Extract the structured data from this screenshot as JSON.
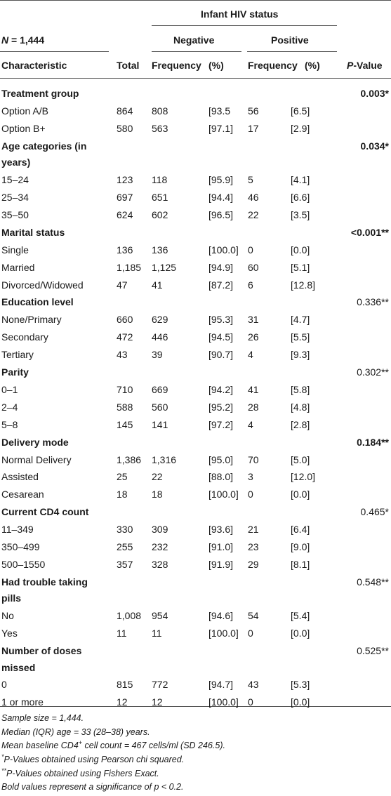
{
  "header": {
    "group_title": "Infant HIV status",
    "n_label": "N",
    "n_value": " = 1,444",
    "negative": "Negative",
    "positive": "Positive",
    "col_characteristic": "Characteristic",
    "col_total": "Total",
    "col_freq_neg": "Frequency",
    "col_pct_neg": "(%)",
    "col_freq_pos": "Frequency",
    "col_pct_pos": "(%)",
    "col_p": "P",
    "col_p_suffix": "-Value"
  },
  "rows": [
    {
      "type": "section",
      "label": "Treatment group",
      "p": "0.003*",
      "p_bold": true
    },
    {
      "type": "data",
      "label": "Option A/B",
      "total": "864",
      "neg_f": "808",
      "neg_p": "[93.5",
      "pos_f": "56",
      "pos_p": "[6.5]"
    },
    {
      "type": "data",
      "label": "Option B+",
      "total": "580",
      "neg_f": "563",
      "neg_p": "[97.1]",
      "pos_f": "17",
      "pos_p": "[2.9]"
    },
    {
      "type": "section2",
      "label": "Age categories (in",
      "label2": "years)",
      "p": "0.034*",
      "p_bold": true
    },
    {
      "type": "data",
      "label": "15–24",
      "total": "123",
      "neg_f": "118",
      "neg_p": "[95.9]",
      "pos_f": "5",
      "pos_p": "[4.1]"
    },
    {
      "type": "data",
      "label": "25–34",
      "total": "697",
      "neg_f": "651",
      "neg_p": "[94.4]",
      "pos_f": "46",
      "pos_p": "[6.6]"
    },
    {
      "type": "data",
      "label": "35–50",
      "total": "624",
      "neg_f": "602",
      "neg_p": "[96.5]",
      "pos_f": "22",
      "pos_p": "[3.5]"
    },
    {
      "type": "section",
      "label": "Marital status",
      "p": "<0.001**",
      "p_bold": true
    },
    {
      "type": "data",
      "label": "Single",
      "total": "136",
      "neg_f": "136",
      "neg_p": "[100.0]",
      "pos_f": "0",
      "pos_p": "[0.0]"
    },
    {
      "type": "data",
      "label": "Married",
      "total": "1,185",
      "neg_f": "1,125",
      "neg_p": "[94.9]",
      "pos_f": "60",
      "pos_p": "[5.1]"
    },
    {
      "type": "data",
      "label": "Divorced/Widowed",
      "total": "47",
      "neg_f": "41",
      "neg_p": "[87.2]",
      "pos_f": "6",
      "pos_p": "[12.8]"
    },
    {
      "type": "section",
      "label": "Education level",
      "p": "0.336**",
      "p_bold": false
    },
    {
      "type": "data",
      "label": "None/Primary",
      "total": "660",
      "neg_f": "629",
      "neg_p": "[95.3]",
      "pos_f": "31",
      "pos_p": "[4.7]"
    },
    {
      "type": "data",
      "label": "Secondary",
      "total": "472",
      "neg_f": "446",
      "neg_p": "[94.5]",
      "pos_f": "26",
      "pos_p": "[5.5]"
    },
    {
      "type": "data",
      "label": "Tertiary",
      "total": "43",
      "neg_f": "39",
      "neg_p": "[90.7]",
      "pos_f": "4",
      "pos_p": "[9.3]"
    },
    {
      "type": "section",
      "label": "Parity",
      "p": "0.302**",
      "p_bold": false
    },
    {
      "type": "data",
      "label": "0–1",
      "total": "710",
      "neg_f": "669",
      "neg_p": "[94.2]",
      "pos_f": "41",
      "pos_p": "[5.8]"
    },
    {
      "type": "data",
      "label": "2–4",
      "total": "588",
      "neg_f": "560",
      "neg_p": "[95.2]",
      "pos_f": "28",
      "pos_p": "[4.8]"
    },
    {
      "type": "data",
      "label": "5–8",
      "total": "145",
      "neg_f": "141",
      "neg_p": "[97.2]",
      "pos_f": "4",
      "pos_p": "[2.8]"
    },
    {
      "type": "section",
      "label": "Delivery mode",
      "p": "0.184**",
      "p_bold": true
    },
    {
      "type": "data",
      "label": "Normal Delivery",
      "total": "1,386",
      "neg_f": "1,316",
      "neg_p": "[95.0]",
      "pos_f": "70",
      "pos_p": "[5.0]"
    },
    {
      "type": "data",
      "label": "Assisted",
      "total": "25",
      "neg_f": "22",
      "neg_p": "[88.0]",
      "pos_f": "3",
      "pos_p": "[12.0]"
    },
    {
      "type": "data",
      "label": "Cesarean",
      "total": "18",
      "neg_f": "18",
      "neg_p": "[100.0]",
      "pos_f": "0",
      "pos_p": "[0.0]"
    },
    {
      "type": "section",
      "label": "Current CD4 count",
      "p": "0.465*",
      "p_bold": false
    },
    {
      "type": "data",
      "label": "11–349",
      "total": "330",
      "neg_f": "309",
      "neg_p": "[93.6]",
      "pos_f": "21",
      "pos_p": "[6.4]"
    },
    {
      "type": "data",
      "label": "350–499",
      "total": "255",
      "neg_f": "232",
      "neg_p": "[91.0]",
      "pos_f": "23",
      "pos_p": "[9.0]"
    },
    {
      "type": "data",
      "label": "500–1550",
      "total": "357",
      "neg_f": "328",
      "neg_p": "[91.9]",
      "pos_f": "29",
      "pos_p": "[8.1]"
    },
    {
      "type": "section2",
      "label": "Had trouble taking",
      "label2": "pills",
      "p": "0.548**",
      "p_bold": false
    },
    {
      "type": "data",
      "label": "No",
      "total": "1,008",
      "neg_f": "954",
      "neg_p": "[94.6]",
      "pos_f": "54",
      "pos_p": "[5.4]"
    },
    {
      "type": "data",
      "label": "Yes",
      "total": "11",
      "neg_f": "11",
      "neg_p": "[100.0]",
      "pos_f": "0",
      "pos_p": "[0.0]"
    },
    {
      "type": "section2",
      "label": "Number of doses",
      "label2": "missed",
      "p": "0.525**",
      "p_bold": false
    },
    {
      "type": "data",
      "label": "0",
      "total": "815",
      "neg_f": "772",
      "neg_p": "[94.7]",
      "pos_f": "43",
      "pos_p": "[5.3]"
    },
    {
      "type": "data",
      "label": "1 or more",
      "total": "12",
      "neg_f": "12",
      "neg_p": "[100.0]",
      "pos_f": "0",
      "pos_p": "[0.0]"
    }
  ],
  "footnotes": {
    "sample_size": "Sample size = 1,444.",
    "median_age": "Median (IQR) age = 33 (28–38) years.",
    "cd4_pre": "Mean baseline CD4",
    "cd4_sup": "+",
    "cd4_post": " cell count = 467 cells/ml (SD 246.5).",
    "p_pearson_star": "*",
    "p_pearson": "P-Values obtained using Pearson chi squared.",
    "p_fisher_star": "**",
    "p_fisher": "P-Values obtained using Fishers Exact.",
    "bold_note": "Bold values represent a significance of p < 0.2."
  }
}
